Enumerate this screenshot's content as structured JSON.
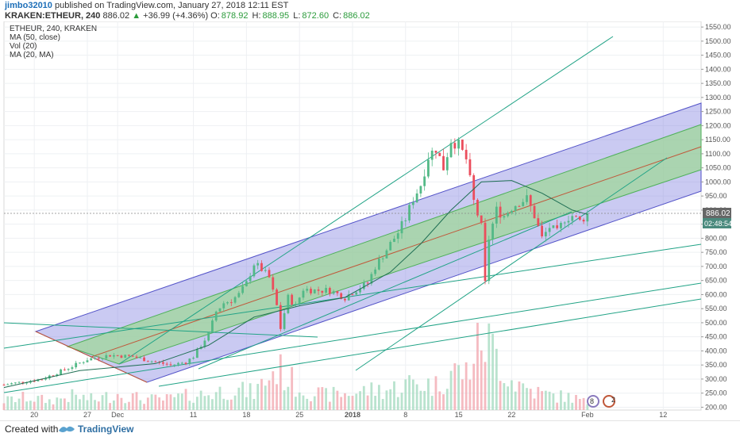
{
  "header": {
    "author": "jimbo32010",
    "published_text": "published on TradingView.com, January 27, 2018 12:11 EST",
    "symbol": "KRAKEN:ETHEUR, 240",
    "last": "886.02",
    "change": "+36.99 (+4.36%)",
    "o_label": "O:",
    "o_value": "878.92",
    "h_label": "H:",
    "h_value": "888.95",
    "l_label": "L:",
    "l_value": "872.60",
    "c_label": "C:",
    "c_value": "886.02"
  },
  "legend": {
    "line1": "ETHEUR, 240, KRAKEN",
    "line2": "MA (50, close)",
    "line3": "Vol (20)",
    "line4": "MA (20, MA)"
  },
  "price_badge": {
    "price": "886.02",
    "countdown": "02:48:54"
  },
  "footer": {
    "created_with": "Created with",
    "brand": "TradingView"
  },
  "event_badges": [
    "8",
    "2"
  ],
  "colors": {
    "up": "#53b987",
    "down": "#eb4d5c",
    "channel_blue": "#6b6bd8",
    "channel_green": "#7ec97e",
    "trend_teal": "#21a386",
    "median_red": "#c0583a"
  },
  "chart_data": {
    "type": "candlestick",
    "title": "ETHEUR, 240, KRAKEN",
    "indicators": [
      "MA (50, close)",
      "Vol (20)",
      "MA (20, MA)"
    ],
    "y_ticks": [
      200,
      250,
      300,
      350,
      400,
      450,
      500,
      550,
      600,
      650,
      700,
      750,
      800,
      850,
      900,
      950,
      1000,
      1050,
      1100,
      1150,
      1200,
      1250,
      1300,
      1350,
      1400,
      1450,
      1500,
      1550
    ],
    "y_tick_labels": [
      "200.00",
      "250.00",
      "300.00",
      "350.00",
      "400.00",
      "450.00",
      "500.00",
      "550.00",
      "600.00",
      "650.00",
      "700.00",
      "750.00",
      "800.00",
      "850.00",
      "900.00",
      "950.00",
      "1000.00",
      "1050.00",
      "1100.00",
      "1150.00",
      "1200.00",
      "1250.00",
      "1300.00",
      "1350.00",
      "1400.00",
      "1450.00",
      "1500.00",
      "1550.00"
    ],
    "ylim": [
      190,
      1570
    ],
    "x_tick_labels": [
      "20",
      "27",
      "Dec",
      "11",
      "18",
      "25",
      "2018",
      "8",
      "15",
      "22",
      "Feb",
      "12"
    ],
    "x_tick_days": [
      -11,
      -4,
      0,
      10,
      17,
      24,
      31,
      38,
      45,
      52,
      62,
      72
    ],
    "xlim_days": [
      -15,
      77
    ],
    "price_path": [
      [
        -15,
        280
      ],
      [
        -10,
        300
      ],
      [
        -6,
        345
      ],
      [
        -4,
        370
      ],
      [
        -1,
        385
      ],
      [
        2,
        380
      ],
      [
        5,
        360
      ],
      [
        7,
        350
      ],
      [
        9,
        360
      ],
      [
        10,
        380
      ],
      [
        11,
        420
      ],
      [
        12,
        460
      ],
      [
        13,
        540
      ],
      [
        14,
        570
      ],
      [
        15,
        580
      ],
      [
        16,
        600
      ],
      [
        17,
        640
      ],
      [
        18,
        710
      ],
      [
        19,
        690
      ],
      [
        20,
        660
      ],
      [
        21,
        560
      ],
      [
        21.5,
        480
      ],
      [
        22.5,
        590
      ],
      [
        23.5,
        560
      ],
      [
        24.5,
        620
      ],
      [
        26,
        615
      ],
      [
        28,
        615
      ],
      [
        30,
        590
      ],
      [
        31,
        610
      ],
      [
        33,
        640
      ],
      [
        34,
        700
      ],
      [
        35,
        740
      ],
      [
        36,
        780
      ],
      [
        37,
        820
      ],
      [
        38,
        870
      ],
      [
        39,
        940
      ],
      [
        40,
        990
      ],
      [
        41,
        1090
      ],
      [
        42,
        1120
      ],
      [
        43,
        1050
      ],
      [
        44,
        1150
      ],
      [
        45,
        1130
      ],
      [
        46,
        1080
      ],
      [
        47,
        930
      ],
      [
        48,
        840
      ],
      [
        48.5,
        640
      ],
      [
        49,
        800
      ],
      [
        50,
        900
      ],
      [
        51,
        880
      ],
      [
        52,
        910
      ],
      [
        53,
        930
      ],
      [
        54,
        940
      ],
      [
        55,
        880
      ],
      [
        56,
        800
      ],
      [
        57,
        840
      ],
      [
        58,
        820
      ],
      [
        59,
        870
      ],
      [
        60,
        880
      ],
      [
        61,
        860
      ],
      [
        62,
        886.02
      ]
    ],
    "ma50": [
      [
        -15,
        270
      ],
      [
        -5,
        330
      ],
      [
        5,
        355
      ],
      [
        12,
        420
      ],
      [
        18,
        520
      ],
      [
        24,
        560
      ],
      [
        30,
        590
      ],
      [
        36,
        680
      ],
      [
        40,
        780
      ],
      [
        44,
        900
      ],
      [
        48,
        1000
      ],
      [
        52,
        1005
      ],
      [
        56,
        960
      ],
      [
        60,
        900
      ],
      [
        62,
        885
      ]
    ],
    "volume": [
      [
        -15,
        40
      ],
      [
        -12,
        55
      ],
      [
        -9,
        40
      ],
      [
        -6,
        60
      ],
      [
        -3,
        45
      ],
      [
        0,
        70
      ],
      [
        3,
        50
      ],
      [
        6,
        45
      ],
      [
        9,
        60
      ],
      [
        12,
        70
      ],
      [
        15,
        90
      ],
      [
        18,
        75
      ],
      [
        21,
        180
      ],
      [
        24,
        95
      ],
      [
        27,
        65
      ],
      [
        30,
        70
      ],
      [
        33,
        85
      ],
      [
        36,
        90
      ],
      [
        39,
        120
      ],
      [
        42,
        105
      ],
      [
        44,
        170
      ],
      [
        46,
        160
      ],
      [
        48,
        320
      ],
      [
        50,
        240
      ],
      [
        52,
        130
      ],
      [
        54,
        95
      ],
      [
        56,
        70
      ],
      [
        58,
        60
      ],
      [
        60,
        55
      ],
      [
        62,
        30
      ]
    ],
    "volume_max": 320
  }
}
